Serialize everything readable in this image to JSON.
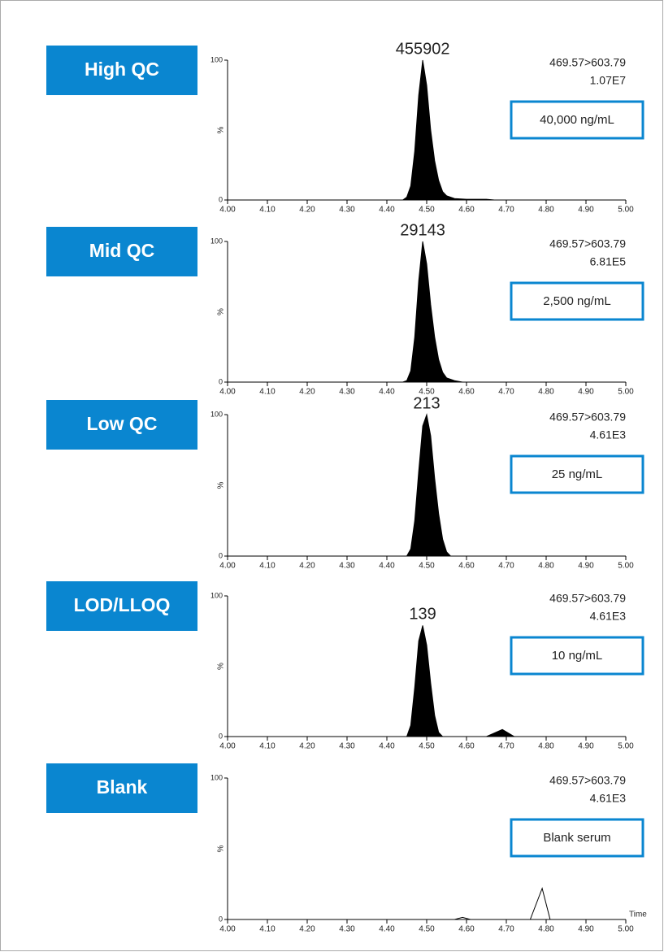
{
  "chart_data": [
    {
      "type": "line",
      "title": "High QC",
      "transition": "469.57>603.79",
      "intensity": "1.07E7",
      "concentration": "40,000 ng/mL",
      "peak_label": "455902",
      "ylabel": "%",
      "fill": true,
      "color": "#000000",
      "x": [
        4.0,
        4.44,
        4.45,
        4.46,
        4.47,
        4.48,
        4.49,
        4.5,
        4.51,
        4.52,
        4.53,
        4.54,
        4.55,
        4.57,
        4.6,
        4.65,
        4.67,
        5.0
      ],
      "values": [
        0,
        0,
        2,
        10,
        35,
        75,
        100,
        82,
        50,
        28,
        14,
        6,
        3,
        1,
        0.5,
        0.5,
        0,
        0
      ],
      "xlim": [
        4.0,
        5.0
      ],
      "ylim": [
        0,
        100
      ],
      "xticks": [
        {
          "value": 4.0,
          "label": "4.00"
        },
        {
          "value": 4.1,
          "label": "4.10"
        },
        {
          "value": 4.2,
          "label": "4.20"
        },
        {
          "value": 4.3,
          "label": "4.30"
        },
        {
          "value": 4.4,
          "label": "4.40"
        },
        {
          "value": 4.5,
          "label": "4.50"
        },
        {
          "value": 4.6,
          "label": "4.60"
        },
        {
          "value": 4.7,
          "label": "4.70"
        },
        {
          "value": 4.8,
          "label": "4.80"
        },
        {
          "value": 4.9,
          "label": "4.90"
        },
        {
          "value": 5.0,
          "label": "5.00"
        }
      ],
      "yticks": [
        0,
        100
      ]
    },
    {
      "type": "line",
      "title": "Mid QC",
      "transition": "469.57>603.79",
      "intensity": "6.81E5",
      "concentration": "2,500 ng/mL",
      "peak_label": "29143",
      "ylabel": "%",
      "fill": true,
      "color": "#000000",
      "x": [
        4.0,
        4.44,
        4.45,
        4.46,
        4.47,
        4.48,
        4.49,
        4.5,
        4.51,
        4.52,
        4.53,
        4.54,
        4.55,
        4.57,
        4.59,
        5.0
      ],
      "values": [
        0,
        0,
        1,
        8,
        32,
        72,
        100,
        84,
        55,
        32,
        16,
        7,
        3,
        1,
        0,
        0
      ],
      "xlim": [
        4.0,
        5.0
      ],
      "ylim": [
        0,
        100
      ],
      "xticks": [
        {
          "value": 4.0,
          "label": "4.00"
        },
        {
          "value": 4.1,
          "label": "4.10"
        },
        {
          "value": 4.2,
          "label": "4.20"
        },
        {
          "value": 4.3,
          "label": "4.30"
        },
        {
          "value": 4.4,
          "label": "4.40"
        },
        {
          "value": 4.5,
          "label": "4.50"
        },
        {
          "value": 4.6,
          "label": "4.60"
        },
        {
          "value": 4.7,
          "label": "4.70"
        },
        {
          "value": 4.8,
          "label": "4.80"
        },
        {
          "value": 4.9,
          "label": "4.90"
        },
        {
          "value": 5.0,
          "label": "5.00"
        }
      ],
      "yticks": [
        0,
        100
      ]
    },
    {
      "type": "line",
      "title": "Low QC",
      "transition": "469.57>603.79",
      "intensity": "4.61E3",
      "concentration": "25 ng/mL",
      "peak_label": "213",
      "ylabel": "%",
      "fill": true,
      "color": "#000000",
      "x": [
        4.0,
        4.45,
        4.46,
        4.47,
        4.48,
        4.49,
        4.5,
        4.51,
        4.52,
        4.53,
        4.54,
        4.55,
        4.56,
        5.0
      ],
      "values": [
        0,
        0,
        5,
        25,
        60,
        92,
        100,
        85,
        55,
        30,
        12,
        3,
        0,
        0
      ],
      "xlim": [
        4.0,
        5.0
      ],
      "ylim": [
        0,
        100
      ],
      "xticks": [
        {
          "value": 4.0,
          "label": "4.00"
        },
        {
          "value": 4.1,
          "label": "4.10"
        },
        {
          "value": 4.2,
          "label": "4.20"
        },
        {
          "value": 4.3,
          "label": "4.30"
        },
        {
          "value": 4.4,
          "label": "4.40"
        },
        {
          "value": 4.5,
          "label": "4.50"
        },
        {
          "value": 4.6,
          "label": "4.60"
        },
        {
          "value": 4.7,
          "label": "4.70"
        },
        {
          "value": 4.8,
          "label": "4.80"
        },
        {
          "value": 4.9,
          "label": "4.90"
        },
        {
          "value": 5.0,
          "label": "5.00"
        }
      ],
      "yticks": [
        0,
        100
      ]
    },
    {
      "type": "line",
      "title": "LOD/LLOQ",
      "transition": "469.57>603.79",
      "intensity": "4.61E3",
      "concentration": "10 ng/mL",
      "peak_label": "139",
      "ylabel": "%",
      "fill": true,
      "color": "#000000",
      "x": [
        4.0,
        4.45,
        4.46,
        4.47,
        4.48,
        4.49,
        4.5,
        4.51,
        4.52,
        4.53,
        4.54,
        4.65,
        4.69,
        4.72,
        5.0
      ],
      "values": [
        0,
        0,
        8,
        35,
        68,
        79,
        65,
        38,
        15,
        3,
        0,
        0,
        5,
        0,
        0
      ],
      "xlim": [
        4.0,
        5.0
      ],
      "ylim": [
        0,
        100
      ],
      "xticks": [
        {
          "value": 4.0,
          "label": "4.00"
        },
        {
          "value": 4.1,
          "label": "4.10"
        },
        {
          "value": 4.2,
          "label": "4.20"
        },
        {
          "value": 4.3,
          "label": "4.30"
        },
        {
          "value": 4.4,
          "label": "4.40"
        },
        {
          "value": 4.5,
          "label": "4.50"
        },
        {
          "value": 4.6,
          "label": "4.60"
        },
        {
          "value": 4.7,
          "label": "4.70"
        },
        {
          "value": 4.8,
          "label": "4.80"
        },
        {
          "value": 4.9,
          "label": "4.90"
        },
        {
          "value": 5.0,
          "label": "5.00"
        }
      ],
      "yticks": [
        0,
        100
      ]
    },
    {
      "type": "line",
      "title": "Blank",
      "transition": "469.57>603.79",
      "intensity": "4.61E3",
      "concentration": "Blank serum",
      "ylabel": "%",
      "xlabel": "Time",
      "fill": false,
      "color": "#000000",
      "x": [
        4.0,
        4.57,
        4.59,
        4.61,
        4.76,
        4.79,
        4.81,
        5.0
      ],
      "values": [
        0,
        0,
        1.5,
        0,
        0,
        22,
        0,
        0
      ],
      "xlim": [
        4.0,
        5.0
      ],
      "ylim": [
        0,
        100
      ],
      "xticks": [
        {
          "value": 4.0,
          "label": "4.00"
        },
        {
          "value": 4.1,
          "label": "4.10"
        },
        {
          "value": 4.2,
          "label": "4.20"
        },
        {
          "value": 4.3,
          "label": "4.30"
        },
        {
          "value": 4.4,
          "label": "4.40"
        },
        {
          "value": 4.5,
          "label": "4.50"
        },
        {
          "value": 4.6,
          "label": "4.60"
        },
        {
          "value": 4.7,
          "label": "4.70"
        },
        {
          "value": 4.8,
          "label": "4.80"
        },
        {
          "value": 4.9,
          "label": "4.90"
        },
        {
          "value": 5.0,
          "label": "5.00"
        }
      ],
      "yticks": [
        0,
        100
      ]
    }
  ]
}
